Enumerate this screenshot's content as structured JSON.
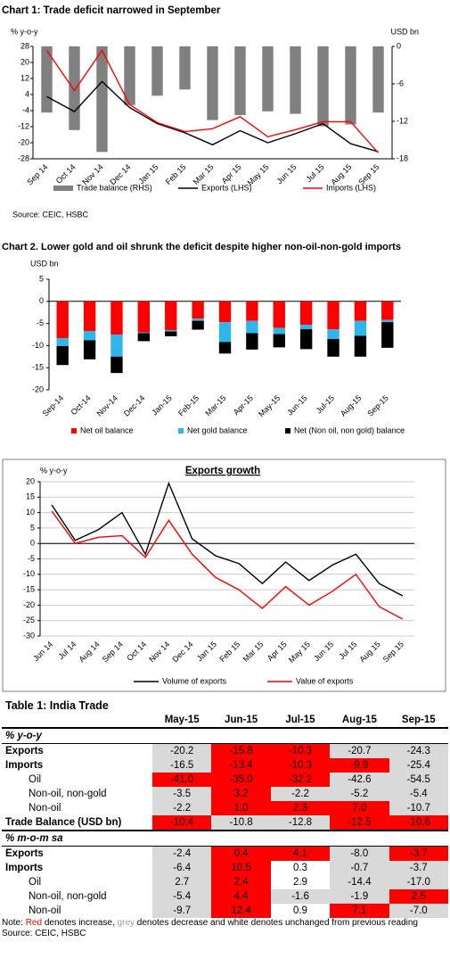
{
  "chart_data": [
    {
      "type": "combo",
      "title": "Chart 1: Trade deficit narrowed in September",
      "y_label": "% y-o-y",
      "y2_label": "USD bn",
      "categories": [
        "Sep 14",
        "Oct 14",
        "Nov 14",
        "Dec 14",
        "Jan 15",
        "Feb 15",
        "Mar 15",
        "Apr 15",
        "May 15",
        "Jun 15",
        "Jul 15",
        "Aug 15",
        "Sep 15"
      ],
      "ylim": [
        -28,
        28
      ],
      "yticks": [
        28,
        20,
        12,
        4,
        -4,
        -12,
        -20,
        -28
      ],
      "y2lim": [
        -18,
        0
      ],
      "y2ticks": [
        0,
        -6,
        -12,
        -18
      ],
      "series": [
        {
          "name": "Trade balance (RHS)",
          "type": "bar",
          "axis": "y2",
          "color": "#808080",
          "values": [
            -10.6,
            -13.4,
            -16.9,
            -9.4,
            -7.9,
            -6.9,
            -11.8,
            -11.0,
            -10.4,
            -10.8,
            -12.8,
            -12.5,
            -10.6
          ]
        },
        {
          "name": "Exports (LHS)",
          "type": "line",
          "color": "#000000",
          "values": [
            3,
            -4.5,
            10.5,
            -2.5,
            -10.5,
            -15,
            -21,
            -14,
            -20,
            -15.5,
            -10.5,
            -20.5,
            -24.5
          ]
        },
        {
          "name": "Imports (LHS)",
          "type": "line",
          "color": "#ff0000",
          "values": [
            26,
            6,
            26,
            -1,
            -10,
            -14.5,
            -13,
            -7,
            -17,
            -13.5,
            -9.5,
            -9.5,
            -25
          ]
        }
      ],
      "source": "Source: CEIC, HSBC"
    },
    {
      "type": "stacked_bar",
      "title": "Chart 2. Lower gold and oil shrunk the deficit despite higher non-oil-non-gold imports",
      "y_label": "USD bn",
      "categories": [
        "Sep-14",
        "Oct-14",
        "Nov-14",
        "Dec-14",
        "Jan-15",
        "Feb-15",
        "Mar-15",
        "Apr-15",
        "May-15",
        "Jun-15",
        "Jul-15",
        "Aug-15",
        "Sep-15"
      ],
      "ylim": [
        -20,
        5
      ],
      "yticks": [
        5,
        0,
        -5,
        -10,
        -15,
        -20
      ],
      "series": [
        {
          "name": "Net oil balance",
          "color": "#ff0000",
          "values": [
            -8.3,
            -6.7,
            -7.5,
            -7,
            -6.5,
            -3.9,
            -4.7,
            -4.4,
            -6,
            -5.3,
            -6.3,
            -4.4,
            -4.2
          ]
        },
        {
          "name": "Net gold balance",
          "color": "#2fb5ea",
          "values": [
            -1.8,
            -2.1,
            -5,
            -0.2,
            -0.3,
            -0.5,
            -4.5,
            -2.8,
            -1.4,
            -1,
            -2.2,
            -3.4,
            -0.5
          ]
        },
        {
          "name": "Net (Non oil, non gold) balance",
          "color": "#000000",
          "values": [
            -4.3,
            -4.3,
            -3.7,
            -1.8,
            -1.1,
            -2,
            -2.6,
            -3.7,
            -3,
            -4.5,
            -4,
            -4.7,
            -5.8
          ]
        }
      ]
    },
    {
      "type": "line",
      "title": "Exports growth",
      "y_label": "% y-o-y",
      "categories": [
        "Jun 14",
        "Jul 14",
        "Aug 14",
        "Sep 14",
        "Oct 14",
        "Nov 14",
        "Dec 14",
        "Jan 15",
        "Feb 15",
        "Mar 15",
        "Apr 15",
        "May 15",
        "Jun 15",
        "Jul 15",
        "Aug 15",
        "Sep 15"
      ],
      "ylim": [
        -30,
        20
      ],
      "yticks": [
        20,
        15,
        10,
        5,
        0,
        -5,
        -10,
        -15,
        -20,
        -25,
        -30
      ],
      "grid": true,
      "series": [
        {
          "name": "Volume of exports",
          "color": "#000000",
          "values": [
            12.5,
            1,
            4.5,
            10,
            -3.5,
            19.5,
            1.5,
            -4,
            -6.5,
            -13,
            -6,
            -12,
            -7,
            -3.5,
            -13,
            -17
          ]
        },
        {
          "name": "Value of exports",
          "color": "#ff0000",
          "values": [
            10.5,
            0,
            2,
            2.5,
            -4.5,
            7.5,
            -3.5,
            -11,
            -15,
            -21,
            -14,
            -20,
            -15.5,
            -10,
            -20.5,
            -24.5
          ]
        }
      ]
    }
  ],
  "table": {
    "title": "Table 1: India Trade",
    "columns": [
      "May-15",
      "Jun-15",
      "Jul-15",
      "Aug-15",
      "Sep-15"
    ],
    "sections": [
      {
        "name": "% y-o-y",
        "rows": [
          {
            "label": "Exports",
            "bold": true,
            "cells": [
              "-20.2",
              "-15.8",
              "-10.3",
              "-20.7",
              "-24.3"
            ],
            "colors": [
              "#d9d9d9",
              "#ff0000",
              "#ff0000",
              "#d9d9d9",
              "#d9d9d9"
            ]
          },
          {
            "label": "Imports",
            "bold": true,
            "cells": [
              "-16.5",
              "-13.4",
              "-10.3",
              "-9.9",
              "-25.4"
            ],
            "colors": [
              "#d9d9d9",
              "#ff0000",
              "#ff0000",
              "#ff0000",
              "#d9d9d9"
            ]
          },
          {
            "label": "Oil",
            "indent": true,
            "cells": [
              "-41.0",
              "-35.0",
              "-32.2",
              "-42.6",
              "-54.5"
            ],
            "colors": [
              "#ff0000",
              "#ff0000",
              "#ff0000",
              "#d9d9d9",
              "#d9d9d9"
            ]
          },
          {
            "label": "Non-oil, non-gold",
            "indent": true,
            "cells": [
              "-3.5",
              "3.2",
              "-2.2",
              "-5.2",
              "-5.4"
            ],
            "colors": [
              "#d9d9d9",
              "#ff0000",
              "#d9d9d9",
              "#d9d9d9",
              "#d9d9d9"
            ]
          },
          {
            "label": "Non-oil",
            "indent": true,
            "cells": [
              "-2.2",
              "1.0",
              "2.3",
              "7.0",
              "-10.7"
            ],
            "colors": [
              "#d9d9d9",
              "#ff0000",
              "#ff0000",
              "#ff0000",
              "#d9d9d9"
            ]
          },
          {
            "label": "Trade Balance (USD bn)",
            "bold": true,
            "cells": [
              "-10.4",
              "-10.8",
              "-12.8",
              "-12.5",
              "-10.6"
            ],
            "colors": [
              "#ff0000",
              "#d9d9d9",
              "#d9d9d9",
              "#ff0000",
              "#ff0000"
            ]
          }
        ]
      },
      {
        "name": "% m-o-m sa",
        "rows": [
          {
            "label": "Exports",
            "bold": true,
            "cells": [
              "-2.4",
              "0.4",
              "4.1",
              "-8.0",
              "-3.7"
            ],
            "colors": [
              "#d9d9d9",
              "#ff0000",
              "#ff0000",
              "#d9d9d9",
              "#ff0000"
            ]
          },
          {
            "label": "Imports",
            "bold": true,
            "cells": [
              "-6.4",
              "10.5",
              "0.3",
              "-0.7",
              "-3.7"
            ],
            "colors": [
              "#d9d9d9",
              "#ff0000",
              "#ffffff",
              "#d9d9d9",
              "#d9d9d9"
            ]
          },
          {
            "label": "Oil",
            "indent": true,
            "cells": [
              "2.7",
              "2.4",
              "2.9",
              "-14.4",
              "-17.0"
            ],
            "colors": [
              "#d9d9d9",
              "#ff0000",
              "#ffffff",
              "#d9d9d9",
              "#d9d9d9"
            ]
          },
          {
            "label": "Non-oil, non-gold",
            "indent": true,
            "cells": [
              "-5.4",
              "4.4",
              "-1.6",
              "-1.9",
              "2.5"
            ],
            "colors": [
              "#d9d9d9",
              "#ff0000",
              "#d9d9d9",
              "#d9d9d9",
              "#ff0000"
            ]
          },
          {
            "label": "Non-oil",
            "indent": true,
            "cells": [
              "-9.7",
              "12.4",
              "0.9",
              "7.1",
              "-7.0"
            ],
            "colors": [
              "#d9d9d9",
              "#ff0000",
              "#ffffff",
              "#ff0000",
              "#d9d9d9"
            ]
          }
        ]
      }
    ],
    "note": [
      "Note: ",
      "Red",
      " denotes increase, ",
      "grey",
      " denotes decrease and white denotes unchanged from previous reading"
    ],
    "source": "Source: CEIC, HSBC"
  }
}
